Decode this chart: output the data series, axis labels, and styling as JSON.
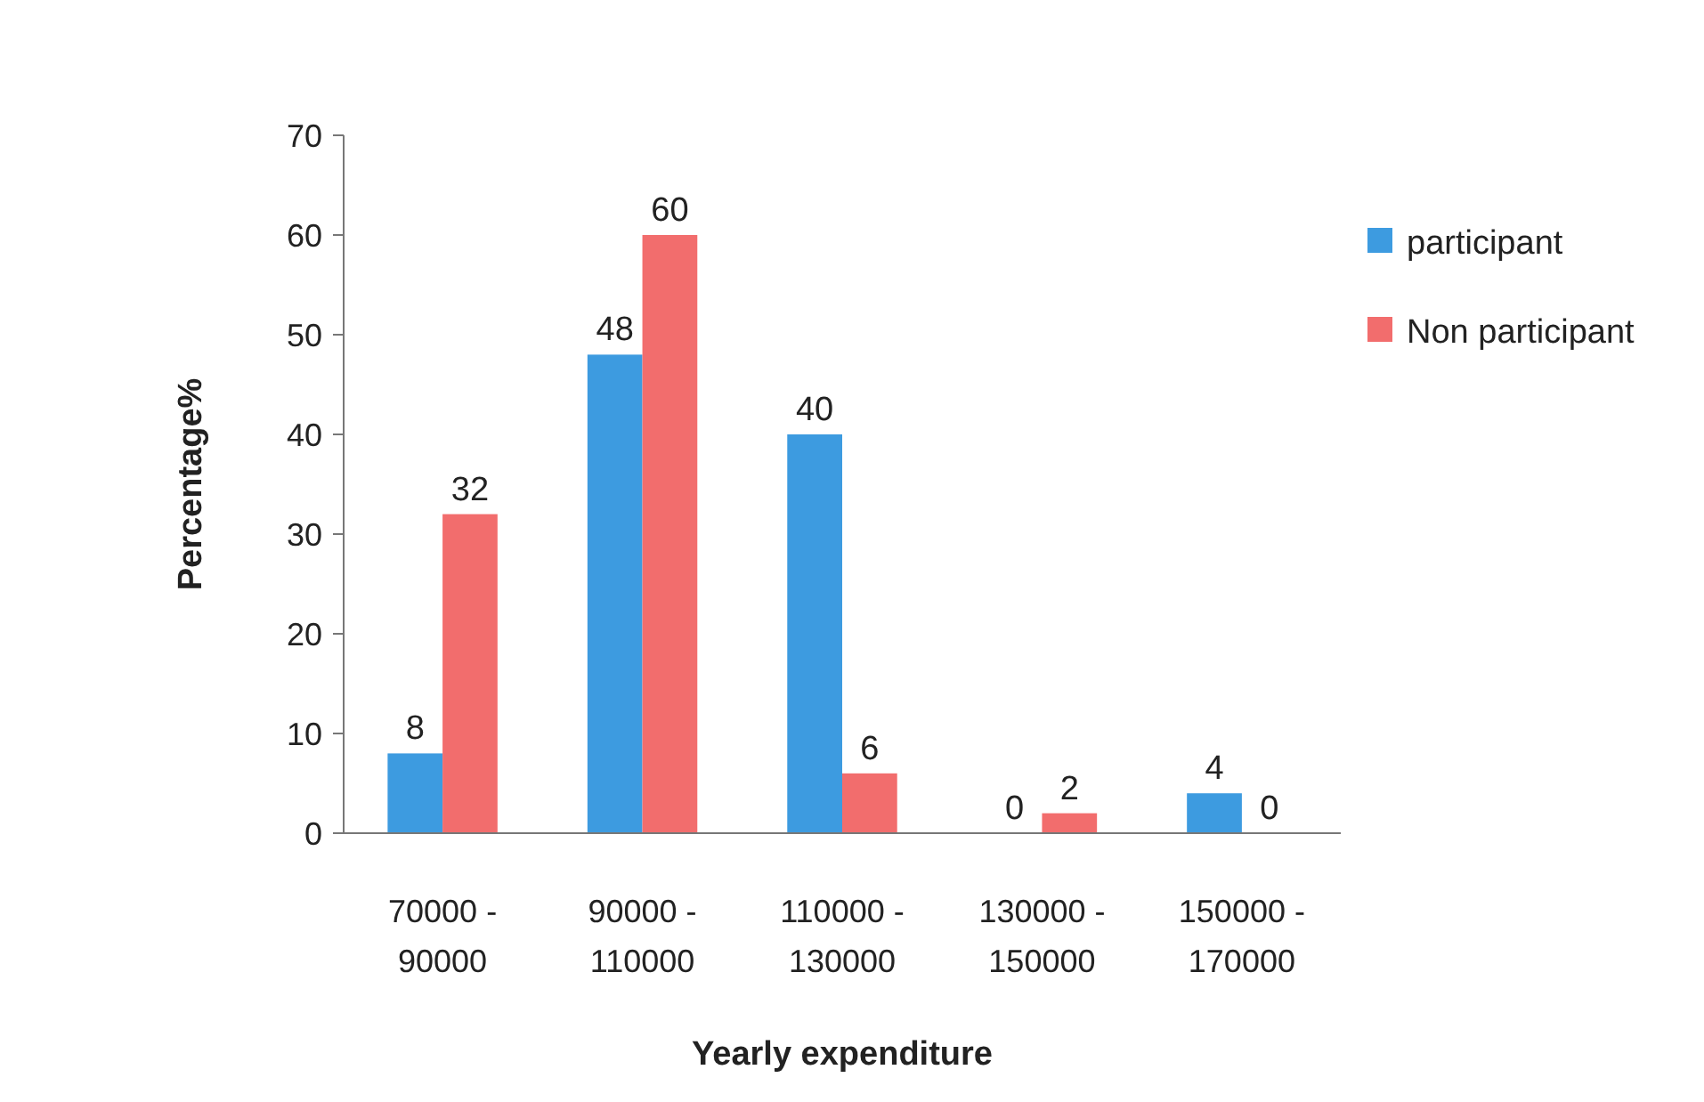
{
  "chart_data": {
    "type": "bar",
    "categories": [
      "70000 - 90000",
      "90000 - 110000",
      "110000 - 130000",
      "130000 - 150000",
      "150000 - 170000"
    ],
    "series": [
      {
        "name": "participant",
        "color": "#3d9be0",
        "values": [
          8,
          48,
          40,
          0,
          4
        ]
      },
      {
        "name": "Non participant",
        "color": "#f26d6d",
        "values": [
          32,
          60,
          6,
          2,
          0
        ]
      }
    ],
    "xlabel": "Yearly expenditure",
    "ylabel": "Percentage%",
    "ylim": [
      0,
      70
    ],
    "yticks": [
      0,
      10,
      20,
      30,
      40,
      50,
      60,
      70
    ],
    "data_labels": true,
    "legend": "right",
    "grid": false
  }
}
